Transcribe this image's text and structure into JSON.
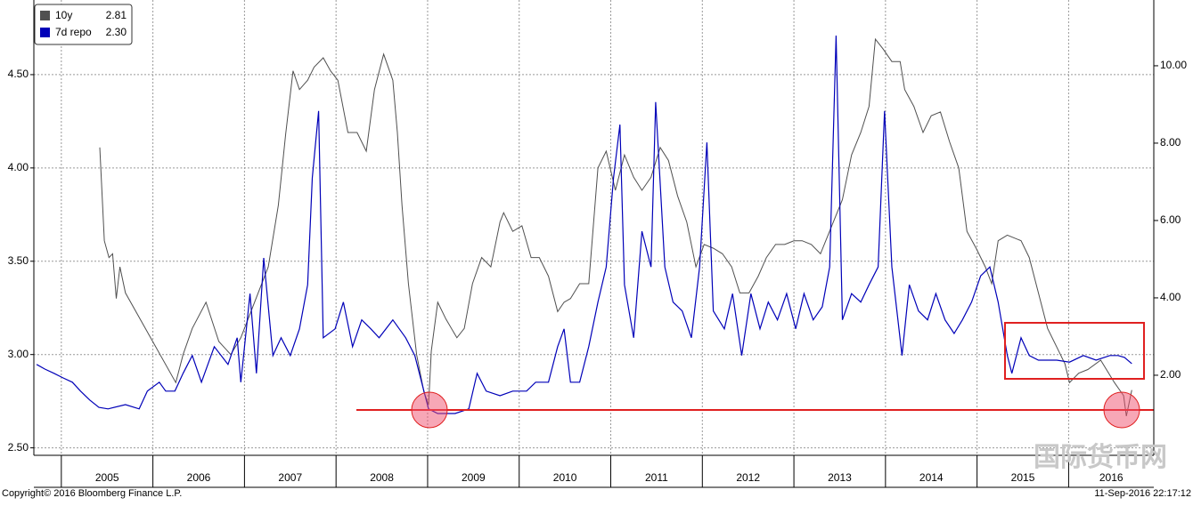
{
  "chart_data": {
    "type": "line",
    "xlim": [
      2004.7,
      2016.93
    ],
    "xticks": [
      2005,
      2006,
      2007,
      2008,
      2009,
      2010,
      2011,
      2012,
      2013,
      2014,
      2015,
      2016
    ],
    "ylim": [
      2.46,
      4.9
    ],
    "yticks": [
      {
        "value": 2.5,
        "label": "2.50"
      },
      {
        "value": 3,
        "label": "3.00"
      },
      {
        "value": 3.5,
        "label": "3.50"
      },
      {
        "value": 4,
        "label": "4.00"
      },
      {
        "value": 4.5,
        "label": "4.50"
      }
    ],
    "y2lim": [
      -0.07,
      11.7
    ],
    "y2ticks": [
      {
        "value": 2,
        "label": "2.00"
      },
      {
        "value": 4,
        "label": "4.00"
      },
      {
        "value": 6,
        "label": "6.00"
      },
      {
        "value": 8,
        "label": "8.00"
      },
      {
        "value": 10,
        "label": "10.00"
      }
    ],
    "grid": true,
    "legend": "top-left",
    "source": "Copyright© 2016 Bloomberg Finance L.P.",
    "timestamp": "11-Sep-2016 22:17:12",
    "watermark": "国际货币网",
    "series": [
      {
        "name": "10y",
        "legend_value": "2.81",
        "color": "#505050",
        "x": [
          2005.42,
          2005.47,
          2005.52,
          2005.56,
          2005.6,
          2005.64,
          2005.7,
          2006.25,
          2006.33,
          2006.43,
          2006.58,
          2006.72,
          2006.85,
          2006.96,
          2007.11,
          2007.26,
          2007.37,
          2007.45,
          2007.53,
          2007.6,
          2007.69,
          2007.76,
          2007.86,
          2007.94,
          2008.02,
          2008.13,
          2008.23,
          2008.33,
          2008.42,
          2008.52,
          2008.62,
          2008.67,
          2008.72,
          2008.79,
          2008.88,
          2008.96,
          2009.01,
          2009.04,
          2009.11,
          2009.2,
          2009.32,
          2009.4,
          2009.49,
          2009.59,
          2009.69,
          2009.79,
          2009.83,
          2009.93,
          2010.03,
          2010.13,
          2010.22,
          2010.32,
          2010.42,
          2010.49,
          2010.56,
          2010.66,
          2010.76,
          2010.86,
          2010.95,
          2011.05,
          2011.15,
          2011.25,
          2011.34,
          2011.44,
          2011.54,
          2011.63,
          2011.73,
          2011.83,
          2011.93,
          2012.02,
          2012.12,
          2012.22,
          2012.32,
          2012.41,
          2012.51,
          2012.61,
          2012.7,
          2012.8,
          2012.9,
          2013,
          2013.09,
          2013.19,
          2013.29,
          2013.43,
          2013.53,
          2013.63,
          2013.73,
          2013.82,
          2013.89,
          2013.97,
          2014.07,
          2014.16,
          2014.21,
          2014.31,
          2014.41,
          2014.5,
          2014.6,
          2014.7,
          2014.8,
          2014.89,
          2014.99,
          2015.09,
          2015.16,
          2015.23,
          2015.33,
          2015.48,
          2015.57,
          2015.67,
          2015.77,
          2015.87,
          2015.96,
          2016.01,
          2016.11,
          2016.21,
          2016.35,
          2016.5,
          2016.6,
          2016.63,
          2016.69
        ],
        "values": [
          4.11,
          3.61,
          3.52,
          3.54,
          3.3,
          3.47,
          3.33,
          2.85,
          3.0,
          3.14,
          3.28,
          3.07,
          3.0,
          3.09,
          3.28,
          3.47,
          3.8,
          4.18,
          4.52,
          4.42,
          4.47,
          4.54,
          4.59,
          4.52,
          4.47,
          4.19,
          4.19,
          4.09,
          4.42,
          4.61,
          4.47,
          4.19,
          3.8,
          3.38,
          3.0,
          2.8,
          2.73,
          3.02,
          3.28,
          3.19,
          3.09,
          3.14,
          3.38,
          3.52,
          3.47,
          3.71,
          3.76,
          3.66,
          3.69,
          3.52,
          3.52,
          3.42,
          3.23,
          3.28,
          3.3,
          3.38,
          3.38,
          4.0,
          4.09,
          3.88,
          4.07,
          3.95,
          3.88,
          3.95,
          4.11,
          4.04,
          3.85,
          3.71,
          3.47,
          3.59,
          3.57,
          3.54,
          3.47,
          3.33,
          3.33,
          3.42,
          3.52,
          3.59,
          3.59,
          3.61,
          3.61,
          3.59,
          3.54,
          3.71,
          3.83,
          4.07,
          4.19,
          4.33,
          4.69,
          4.64,
          4.57,
          4.57,
          4.42,
          4.33,
          4.19,
          4.28,
          4.3,
          4.14,
          4.0,
          3.66,
          3.57,
          3.47,
          3.38,
          3.61,
          3.64,
          3.61,
          3.52,
          3.33,
          3.14,
          3.04,
          2.95,
          2.85,
          2.9,
          2.92,
          2.97,
          2.85,
          2.78,
          2.67,
          2.81
        ]
      },
      {
        "name": "7d repo",
        "legend_value": "2.30",
        "color": "#0000b8",
        "axis": "y2",
        "x": [
          2004.73,
          2004.82,
          2004.92,
          2005.02,
          2005.12,
          2005.21,
          2005.31,
          2005.41,
          2005.51,
          2005.7,
          2005.85,
          2005.94,
          2006.07,
          2006.14,
          2006.24,
          2006.33,
          2006.43,
          2006.53,
          2006.67,
          2006.82,
          2006.92,
          2006.96,
          2007.06,
          2007.13,
          2007.21,
          2007.31,
          2007.4,
          2007.5,
          2007.6,
          2007.69,
          2007.74,
          2007.81,
          2007.86,
          2007.99,
          2008.08,
          2008.18,
          2008.28,
          2008.38,
          2008.47,
          2008.62,
          2008.76,
          2008.86,
          2008.96,
          2009.01,
          2009.11,
          2009.2,
          2009.3,
          2009.45,
          2009.54,
          2009.64,
          2009.79,
          2009.93,
          2010.08,
          2010.18,
          2010.32,
          2010.42,
          2010.49,
          2010.56,
          2010.66,
          2010.76,
          2010.86,
          2010.95,
          2011.03,
          2011.1,
          2011.15,
          2011.25,
          2011.34,
          2011.44,
          2011.49,
          2011.59,
          2011.68,
          2011.78,
          2011.88,
          2011.97,
          2012.05,
          2012.12,
          2012.24,
          2012.33,
          2012.43,
          2012.53,
          2012.63,
          2012.72,
          2012.82,
          2012.92,
          2013.02,
          2013.11,
          2013.21,
          2013.31,
          2013.39,
          2013.46,
          2013.53,
          2013.63,
          2013.73,
          2013.82,
          2013.92,
          2013.99,
          2014.07,
          2014.18,
          2014.26,
          2014.36,
          2014.46,
          2014.55,
          2014.65,
          2014.75,
          2014.84,
          2014.94,
          2015.04,
          2015.14,
          2015.23,
          2015.33,
          2015.38,
          2015.48,
          2015.57,
          2015.67,
          2015.77,
          2015.87,
          2016.01,
          2016.16,
          2016.3,
          2016.45,
          2016.54,
          2016.61,
          2016.69
        ],
        "values": [
          2.28,
          2.16,
          2.05,
          1.93,
          1.82,
          1.59,
          1.36,
          1.17,
          1.13,
          1.24,
          1.13,
          1.59,
          1.82,
          1.59,
          1.59,
          2.05,
          2.51,
          1.82,
          2.74,
          2.28,
          2.97,
          1.82,
          4.11,
          2.05,
          5.03,
          2.51,
          2.97,
          2.51,
          3.2,
          4.34,
          7.1,
          8.83,
          2.97,
          3.2,
          3.89,
          2.74,
          3.43,
          3.2,
          2.97,
          3.43,
          2.97,
          2.51,
          1.59,
          1.13,
          1.01,
          1.01,
          1.01,
          1.13,
          2.05,
          1.59,
          1.47,
          1.59,
          1.59,
          1.82,
          1.82,
          2.74,
          3.2,
          1.82,
          1.82,
          2.74,
          3.89,
          4.8,
          7.1,
          8.48,
          4.34,
          2.97,
          5.72,
          4.8,
          9.06,
          4.8,
          3.89,
          3.66,
          2.97,
          4.8,
          8.02,
          3.66,
          3.2,
          4.11,
          2.51,
          4.11,
          3.2,
          3.89,
          3.43,
          4.11,
          3.2,
          4.11,
          3.43,
          3.77,
          4.8,
          10.78,
          3.43,
          4.11,
          3.89,
          4.34,
          4.8,
          8.83,
          4.8,
          2.51,
          4.34,
          3.66,
          3.43,
          4.11,
          3.43,
          3.08,
          3.43,
          3.89,
          4.57,
          4.8,
          3.89,
          2.51,
          2.05,
          2.97,
          2.51,
          2.39,
          2.39,
          2.39,
          2.34,
          2.51,
          2.39,
          2.51,
          2.51,
          2.46,
          2.3
        ]
      }
    ]
  }
}
